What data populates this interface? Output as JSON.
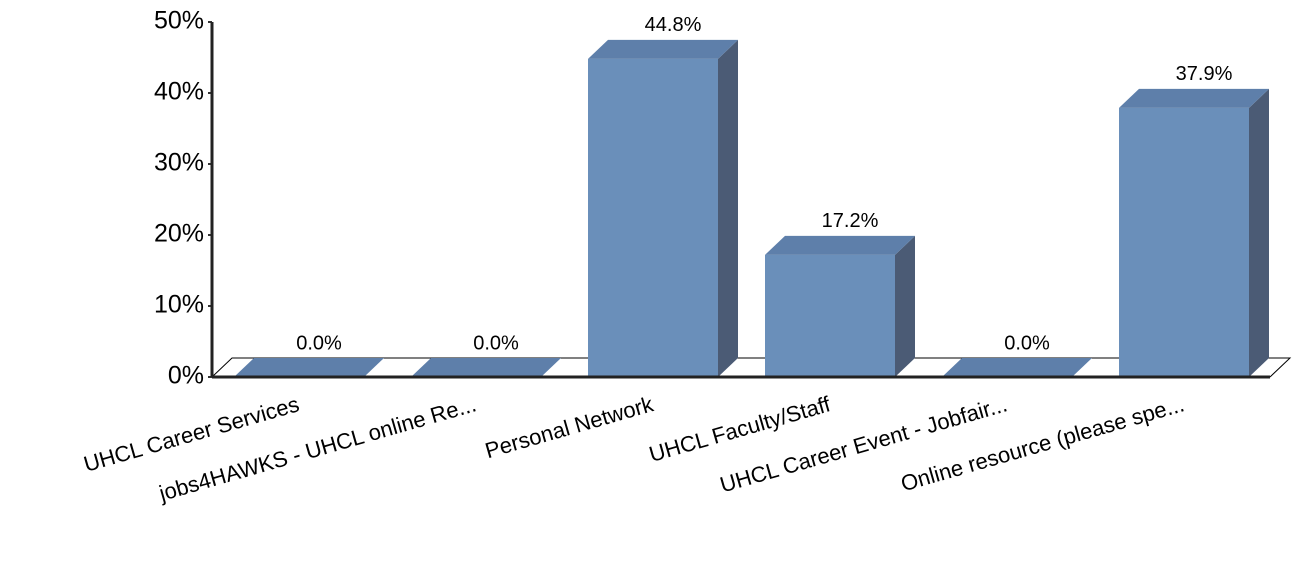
{
  "chart_data": {
    "type": "bar3d",
    "categories": [
      "UHCL Career Services",
      "jobs4HAWKS - UHCL online Re...",
      "Personal Network",
      "UHCL Faculty/Staff",
      "UHCL Career Event - Jobfair...",
      "Online resource (please spe..."
    ],
    "values": [
      0,
      0,
      44.8,
      17.2,
      0,
      37.9
    ],
    "value_labels": [
      "0.0%",
      "0.0%",
      "44.8%",
      "17.2%",
      "0.0%",
      "37.9%"
    ],
    "color": "#6a8fba",
    "ylim": [
      0,
      50
    ],
    "yticks": [
      {
        "value": 0,
        "label": "0%"
      },
      {
        "value": 10,
        "label": "10%"
      },
      {
        "value": 20,
        "label": "20%"
      },
      {
        "value": 30,
        "label": "30%"
      },
      {
        "value": 40,
        "label": "40%"
      },
      {
        "value": 50,
        "label": "50%"
      }
    ]
  }
}
